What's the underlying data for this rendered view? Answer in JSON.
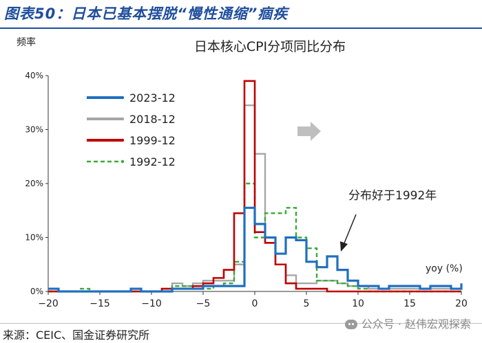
{
  "figure": {
    "title": "图表50：日本已基本摆脱“慢性通缩”痼疾",
    "source": "来源：CEIC、国金证券研究所",
    "watermark": "公众号 · 赵伟宏观探索"
  },
  "chart_data": {
    "type": "line",
    "title": "日本核心CPI分项同比分布",
    "ylabel": "频率",
    "xlabel": "yoy (%)",
    "xlim": [
      -20,
      20
    ],
    "ylim": [
      0,
      40
    ],
    "x_ticks": [
      -20,
      -15,
      -10,
      -5,
      0,
      5,
      10,
      15,
      20
    ],
    "y_ticks": [
      0,
      10,
      20,
      30,
      40
    ],
    "x_tick_labels": [
      "−20",
      "−15",
      "−10",
      "−5",
      "0",
      "5",
      "10",
      "15",
      "20"
    ],
    "y_tick_labels": [
      "0%",
      "10%",
      "20%",
      "30%",
      "40%"
    ],
    "legend_position": "upper-left",
    "annotation": "分布好于1992年",
    "arrow_icon": "right-arrow-icon",
    "series": [
      {
        "name": "2023-12",
        "color": "#1f6fbf",
        "style": "solid",
        "points": [
          [
            -20,
            0.5
          ],
          [
            -19,
            0
          ],
          [
            -12,
            0.5
          ],
          [
            -11,
            0
          ],
          [
            -8,
            0.5
          ],
          [
            -7,
            0.5
          ],
          [
            -6,
            0.5
          ],
          [
            -5,
            1
          ],
          [
            -4,
            1
          ],
          [
            -3,
            1
          ],
          [
            -2,
            1
          ],
          [
            -1,
            15.5
          ],
          [
            0,
            12.5
          ],
          [
            1,
            10
          ],
          [
            2,
            7
          ],
          [
            3,
            10
          ],
          [
            4,
            9.5
          ],
          [
            5,
            5.5
          ],
          [
            6,
            4.5
          ],
          [
            7,
            6.5
          ],
          [
            8,
            4
          ],
          [
            9,
            2
          ],
          [
            10,
            1
          ],
          [
            11,
            1
          ],
          [
            12,
            0.5
          ],
          [
            13,
            1
          ],
          [
            14,
            1
          ],
          [
            15,
            1
          ],
          [
            16,
            0.5
          ],
          [
            17,
            1
          ],
          [
            18,
            1
          ],
          [
            19,
            0.5
          ],
          [
            20,
            1.5
          ]
        ]
      },
      {
        "name": "2018-12",
        "color": "#a6a6a6",
        "style": "solid",
        "points": [
          [
            -20,
            0
          ],
          [
            -9,
            0
          ],
          [
            -8,
            1.5
          ],
          [
            -7,
            1
          ],
          [
            -6,
            1.5
          ],
          [
            -5,
            2
          ],
          [
            -4,
            2
          ],
          [
            -3,
            2
          ],
          [
            -2,
            5
          ],
          [
            -1,
            34.5
          ],
          [
            0,
            25.5
          ],
          [
            1,
            10
          ],
          [
            2,
            5
          ],
          [
            3,
            3
          ],
          [
            4,
            1.5
          ],
          [
            5,
            1.5
          ],
          [
            6,
            2
          ],
          [
            7,
            2
          ],
          [
            8,
            1.5
          ],
          [
            9,
            1
          ],
          [
            10,
            1
          ],
          [
            11,
            0.5
          ],
          [
            12,
            0.5
          ],
          [
            13,
            0.5
          ],
          [
            20,
            0.5
          ]
        ]
      },
      {
        "name": "1999-12",
        "color": "#c00000",
        "style": "solid",
        "points": [
          [
            -20,
            0
          ],
          [
            -10,
            0
          ],
          [
            -9,
            0.5
          ],
          [
            -8,
            0.5
          ],
          [
            -7,
            0.5
          ],
          [
            -6,
            1
          ],
          [
            -5,
            1.5
          ],
          [
            -4,
            2.5
          ],
          [
            -3,
            4
          ],
          [
            -2,
            14.5
          ],
          [
            -1,
            39
          ],
          [
            0,
            11
          ],
          [
            1,
            9
          ],
          [
            2,
            5
          ],
          [
            3,
            1.5
          ],
          [
            4,
            0.5
          ],
          [
            5,
            0.5
          ],
          [
            6,
            0.5
          ],
          [
            7,
            0
          ],
          [
            20,
            0
          ]
        ]
      },
      {
        "name": "1992-12",
        "color": "#3aaa35",
        "style": "dashed",
        "points": [
          [
            -20,
            0
          ],
          [
            -17,
            0.5
          ],
          [
            -16,
            0
          ],
          [
            -10,
            0
          ],
          [
            -9,
            0.5
          ],
          [
            -8,
            1
          ],
          [
            -7,
            1
          ],
          [
            -6,
            1
          ],
          [
            -5,
            0.5
          ],
          [
            -4,
            1
          ],
          [
            -3,
            1.5
          ],
          [
            -2,
            5.5
          ],
          [
            -1,
            20
          ],
          [
            0,
            10
          ],
          [
            1,
            14.5
          ],
          [
            2,
            14.5
          ],
          [
            3,
            15.5
          ],
          [
            4,
            10
          ],
          [
            5,
            8
          ],
          [
            6,
            2
          ],
          [
            7,
            2
          ],
          [
            8,
            1.5
          ],
          [
            9,
            1
          ],
          [
            10,
            0.5
          ],
          [
            11,
            0
          ],
          [
            20,
            0
          ]
        ]
      }
    ]
  }
}
